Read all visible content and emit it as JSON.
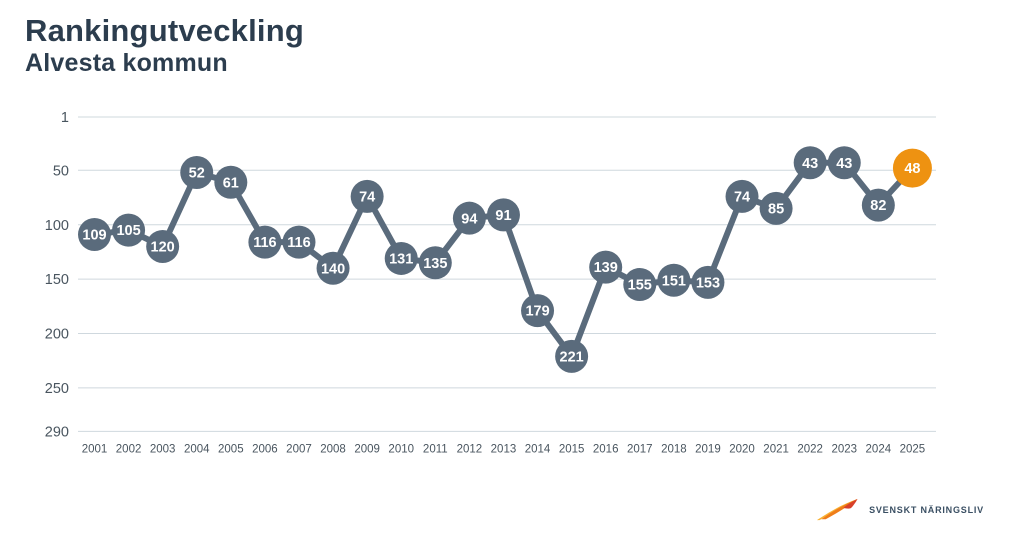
{
  "header": {
    "title": "Rankingutveckling",
    "subtitle": "Alvesta kommun"
  },
  "chart_data": {
    "type": "line",
    "title": "Rankingutveckling",
    "subtitle": "Alvesta kommun",
    "x": [
      2001,
      2002,
      2003,
      2004,
      2005,
      2006,
      2007,
      2008,
      2009,
      2010,
      2011,
      2012,
      2013,
      2014,
      2015,
      2016,
      2017,
      2018,
      2019,
      2020,
      2021,
      2022,
      2023,
      2024,
      2025
    ],
    "values": [
      109,
      105,
      120,
      52,
      61,
      116,
      116,
      140,
      74,
      131,
      135,
      94,
      91,
      179,
      221,
      139,
      155,
      151,
      153,
      74,
      85,
      43,
      43,
      82,
      48
    ],
    "highlight_index": 24,
    "highlight_value": 48,
    "y_ticks": [
      1,
      50,
      100,
      150,
      200,
      250,
      290
    ],
    "ylim": [
      1,
      290
    ],
    "y_axis_inverted": true,
    "grid": true,
    "xlabel": "",
    "ylabel": "",
    "colors": {
      "point": "#5a6b7c",
      "line": "#5a6b7c",
      "highlight": "#ee9211",
      "grid": "#cfd8de",
      "axis_text": "#49555f",
      "value_text": "#ffffff"
    }
  },
  "logo": {
    "text": "SVENSKT NÄRINGSLIV",
    "icon": "wing-icon"
  }
}
